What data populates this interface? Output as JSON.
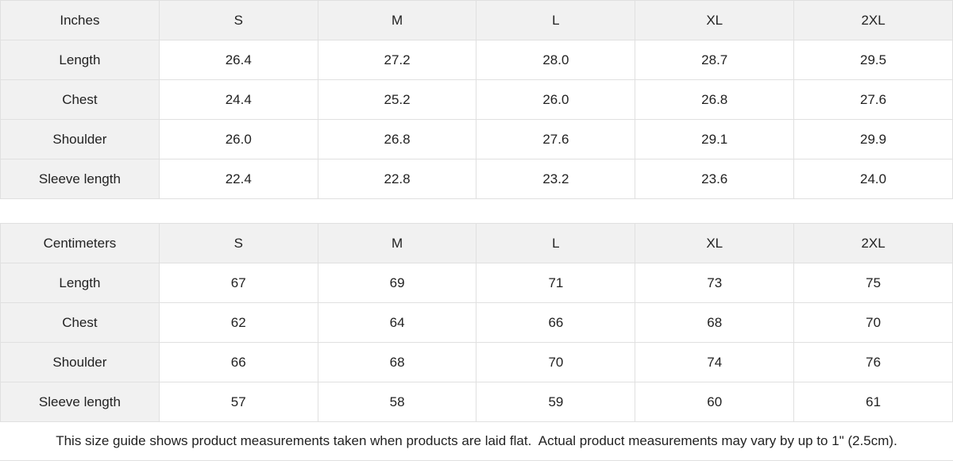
{
  "colors": {
    "header_bg": "#f1f1f1",
    "cell_bg": "#ffffff",
    "border": "#e0e0e0",
    "text": "#222222"
  },
  "tables": [
    {
      "unit_label": "Inches",
      "size_headers": [
        "S",
        "M",
        "L",
        "XL",
        "2XL"
      ],
      "rows": [
        {
          "label": "Length",
          "values": [
            "26.4",
            "27.2",
            "28.0",
            "28.7",
            "29.5"
          ]
        },
        {
          "label": "Chest",
          "values": [
            "24.4",
            "25.2",
            "26.0",
            "26.8",
            "27.6"
          ]
        },
        {
          "label": "Shoulder",
          "values": [
            "26.0",
            "26.8",
            "27.6",
            "29.1",
            "29.9"
          ]
        },
        {
          "label": "Sleeve length",
          "values": [
            "22.4",
            "22.8",
            "23.2",
            "23.6",
            "24.0"
          ]
        }
      ]
    },
    {
      "unit_label": "Centimeters",
      "size_headers": [
        "S",
        "M",
        "L",
        "XL",
        "2XL"
      ],
      "rows": [
        {
          "label": "Length",
          "values": [
            "67",
            "69",
            "71",
            "73",
            "75"
          ]
        },
        {
          "label": "Chest",
          "values": [
            "62",
            "64",
            "66",
            "68",
            "70"
          ]
        },
        {
          "label": "Shoulder",
          "values": [
            "66",
            "68",
            "70",
            "74",
            "76"
          ]
        },
        {
          "label": "Sleeve length",
          "values": [
            "57",
            "58",
            "59",
            "60",
            "61"
          ]
        }
      ]
    }
  ],
  "footer": {
    "note": "This size guide shows product measurements taken when products are laid flat.  Actual product measurements may vary by up to 1\" (2.5cm)."
  }
}
